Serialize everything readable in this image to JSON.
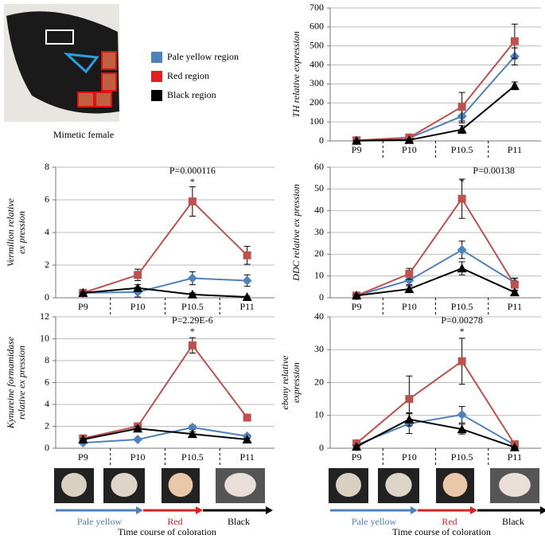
{
  "photo_caption": "Mimetic female",
  "legend": [
    {
      "name": "Pale yellow region",
      "color": "#4f81bd"
    },
    {
      "name": "Red region",
      "color": "#e02020"
    },
    {
      "name": "Black region",
      "color": "#000000"
    }
  ],
  "timeline": {
    "labels": [
      "Pale yellow",
      "Red",
      "Black"
    ],
    "caption": "Time course of coloration"
  },
  "chart_data": [
    {
      "type": "line",
      "ylabel": [
        "TH relative expression"
      ],
      "categories": [
        "P9",
        "P10",
        "P10.5",
        "P11"
      ],
      "ylim": [
        0,
        700
      ],
      "yticks": [
        0,
        100,
        200,
        300,
        400,
        500,
        600,
        700
      ],
      "grid": true,
      "annotations": [],
      "series": [
        {
          "color": "#4f81bd",
          "marker": "diamond",
          "values": [
            2,
            15,
            130,
            445
          ],
          "errors": [
            2,
            5,
            35,
            45
          ]
        },
        {
          "color": "#c0504d",
          "marker": "square",
          "values": [
            3,
            18,
            180,
            525
          ],
          "errors": [
            2,
            8,
            75,
            90
          ]
        },
        {
          "color": "#000000",
          "marker": "triangle",
          "values": [
            1,
            5,
            60,
            290
          ],
          "errors": [
            1,
            3,
            20,
            20
          ]
        }
      ]
    },
    {
      "type": "line",
      "ylabel": [
        "Vermilion relative",
        "ex pression"
      ],
      "categories": [
        "P9",
        "P10",
        "P10.5",
        "P11"
      ],
      "ylim": [
        0,
        8
      ],
      "yticks": [
        0,
        2,
        4,
        6,
        8
      ],
      "grid": true,
      "annotations": [
        "P=0.000116",
        "*"
      ],
      "series": [
        {
          "color": "#4f81bd",
          "marker": "diamond",
          "values": [
            0.3,
            0.35,
            1.2,
            1.05
          ],
          "errors": [
            0.1,
            0.3,
            0.4,
            0.35
          ]
        },
        {
          "color": "#c0504d",
          "marker": "square",
          "values": [
            0.3,
            1.4,
            5.9,
            2.6
          ],
          "errors": [
            0.1,
            0.35,
            0.9,
            0.55
          ]
        },
        {
          "color": "#000000",
          "marker": "triangle",
          "values": [
            0.3,
            0.6,
            0.2,
            0.05
          ],
          "errors": [
            0.05,
            0.2,
            0.1,
            0.05
          ]
        }
      ]
    },
    {
      "type": "line",
      "ylabel": [
        "DDC relative ex pression"
      ],
      "categories": [
        "P9",
        "P10",
        "P10.5",
        "P11"
      ],
      "ylim": [
        0,
        60
      ],
      "yticks": [
        0,
        10,
        20,
        30,
        40,
        50,
        60
      ],
      "grid": true,
      "annotations": [
        "P=0.00138",
        "*"
      ],
      "series": [
        {
          "color": "#4f81bd",
          "marker": "diamond",
          "values": [
            1,
            8,
            22,
            7
          ],
          "errors": [
            0.5,
            2,
            4,
            2
          ]
        },
        {
          "color": "#c0504d",
          "marker": "square",
          "values": [
            1,
            11,
            45.5,
            6
          ],
          "errors": [
            0.5,
            2.5,
            9,
            3
          ]
        },
        {
          "color": "#000000",
          "marker": "triangle",
          "values": [
            1,
            4,
            13.5,
            2.5
          ],
          "errors": [
            0.5,
            1.5,
            3,
            1
          ]
        }
      ]
    },
    {
      "type": "line",
      "ylabel": [
        "Kynureine formamidase",
        "relative ex pression"
      ],
      "categories": [
        "P9",
        "P10",
        "P10.5",
        "P11"
      ],
      "ylim": [
        0,
        12
      ],
      "yticks": [
        0,
        2,
        4,
        6,
        8,
        10,
        12
      ],
      "grid": true,
      "annotations": [
        "P=2.29E-6",
        "*"
      ],
      "series": [
        {
          "color": "#4f81bd",
          "marker": "diamond",
          "values": [
            0.5,
            0.8,
            1.9,
            1.1
          ],
          "errors": [
            0.1,
            0.1,
            0.2,
            0.15
          ]
        },
        {
          "color": "#c0504d",
          "marker": "square",
          "values": [
            0.9,
            2,
            9.4,
            2.8
          ],
          "errors": [
            0.1,
            0.2,
            0.7,
            0.2
          ]
        },
        {
          "color": "#000000",
          "marker": "triangle",
          "values": [
            0.8,
            1.8,
            1.3,
            0.8
          ],
          "errors": [
            0.1,
            0.2,
            0.2,
            0.1
          ]
        }
      ]
    },
    {
      "type": "line",
      "ylabel": [
        "ebony relative",
        "expression"
      ],
      "categories": [
        "P9",
        "P10",
        "P10.5",
        "P11"
      ],
      "ylim": [
        0,
        40
      ],
      "yticks": [
        0,
        10,
        20,
        30,
        40
      ],
      "grid": true,
      "annotations": [
        "P=0.00278",
        "*"
      ],
      "series": [
        {
          "color": "#4f81bd",
          "marker": "diamond",
          "values": [
            1,
            7.5,
            10.2,
            1
          ],
          "errors": [
            0.5,
            3,
            2.5,
            0.5
          ]
        },
        {
          "color": "#c0504d",
          "marker": "square",
          "values": [
            1.5,
            15,
            26.5,
            1.2
          ],
          "errors": [
            0.5,
            7,
            7,
            0.5
          ]
        },
        {
          "color": "#000000",
          "marker": "triangle",
          "values": [
            0.5,
            8.8,
            5.8,
            0.3
          ],
          "errors": [
            0.3,
            2,
            1.5,
            0.2
          ]
        }
      ]
    }
  ]
}
